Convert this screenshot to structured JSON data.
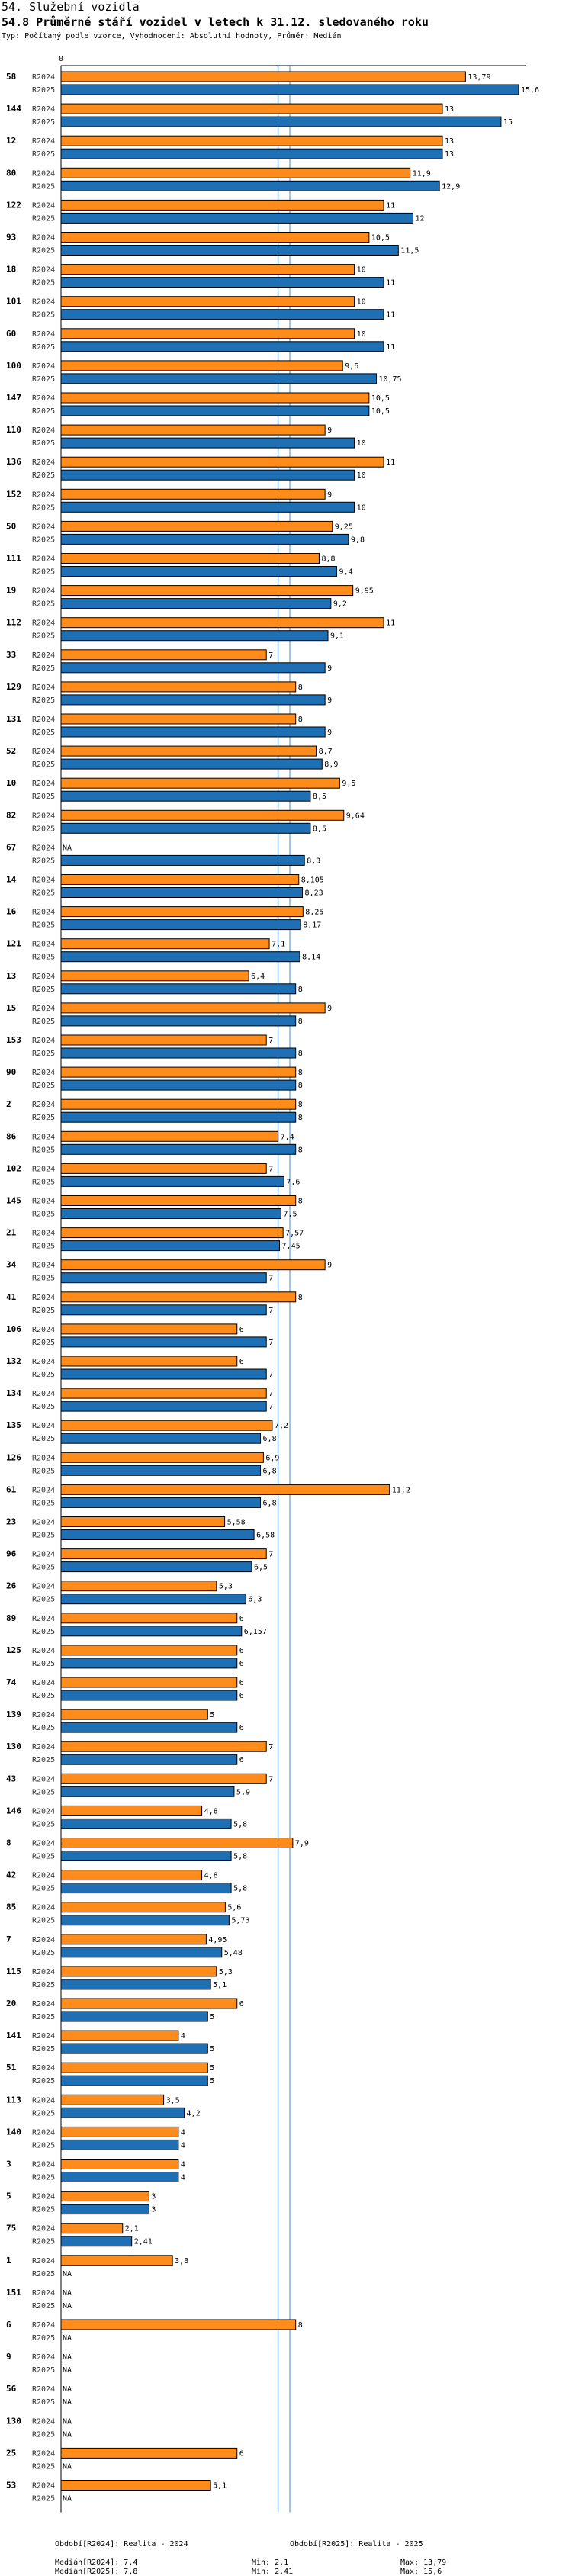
{
  "header": {
    "title": "54. Služební vozidla",
    "subtitle": "54.8 Průměrné stáří vozidel v letech k 31.12. sledovaného roku",
    "meta": "Typ: Počítaný podle vzorce, Vyhodnocení: Absolutní hodnoty, Průměr: Medián"
  },
  "chart_data": {
    "type": "bar",
    "orientation": "horizontal",
    "title": "54.8 Průměrné stáří vozidel v letech k 31.12. sledovaného roku",
    "x_tick_label": "0",
    "xlim": [
      0,
      15.6
    ],
    "na_label": "NA",
    "series_names": [
      "R2024",
      "R2025"
    ],
    "colors": {
      "R2024": "#ff8c1a",
      "R2025": "#1f6fb5",
      "median_line": "#7fb3e0"
    },
    "median": {
      "R2024": 7.4,
      "R2025": 7.8
    },
    "categories": [
      "58",
      "144",
      "12",
      "80",
      "122",
      "93",
      "18",
      "101",
      "60",
      "100",
      "147",
      "110",
      "136",
      "152",
      "50",
      "111",
      "19",
      "112",
      "33",
      "129",
      "131",
      "52",
      "10",
      "82",
      "67",
      "14",
      "16",
      "121",
      "13",
      "15",
      "153",
      "90",
      "2",
      "86",
      "102",
      "145",
      "21",
      "34",
      "41",
      "106",
      "132",
      "134",
      "135",
      "126",
      "61",
      "23",
      "96",
      "26",
      "89",
      "125",
      "74",
      "139",
      "130",
      "43",
      "146",
      "8",
      "42",
      "85",
      "7",
      "115",
      "20",
      "141",
      "51",
      "113",
      "140",
      "3",
      "5",
      "75",
      "1",
      "151",
      "6",
      "9",
      "56",
      "130",
      "25",
      "53"
    ],
    "series": [
      {
        "name": "R2024",
        "values": [
          13.79,
          13,
          13,
          11.9,
          11,
          10.5,
          10,
          10,
          10,
          9.6,
          10.5,
          9,
          11,
          9,
          9.25,
          8.8,
          9.95,
          11,
          7,
          8,
          8,
          8.7,
          9.5,
          9.64,
          null,
          8.105,
          8.25,
          7.1,
          6.4,
          9,
          7,
          8,
          8,
          7.4,
          7,
          8,
          7.57,
          9,
          8,
          6,
          6,
          7,
          7.2,
          6.9,
          11.2,
          5.58,
          7,
          5.3,
          6,
          6,
          6,
          5,
          7,
          7,
          4.8,
          7.9,
          4.8,
          5.6,
          4.95,
          5.3,
          6,
          4,
          5,
          3.5,
          4,
          4,
          3,
          2.1,
          3.8,
          null,
          8,
          null,
          null,
          null,
          6,
          5.1
        ],
        "labels": [
          "13,79",
          "13",
          "13",
          "11,9",
          "11",
          "10,5",
          "10",
          "10",
          "10",
          "9,6",
          "10,5",
          "9",
          "11",
          "9",
          "9,25",
          "8,8",
          "9,95",
          "11",
          "7",
          "8",
          "8",
          "8,7",
          "9,5",
          "9,64",
          "NA",
          "8,105",
          "8,25",
          "7,1",
          "6,4",
          "9",
          "7",
          "8",
          "8",
          "7,4",
          "7",
          "8",
          "7,57",
          "9",
          "8",
          "6",
          "6",
          "7",
          "7,2",
          "6,9",
          "11,2",
          "5,58",
          "7",
          "5,3",
          "6",
          "6",
          "6",
          "5",
          "7",
          "7",
          "4,8",
          "7,9",
          "4,8",
          "5,6",
          "4,95",
          "5,3",
          "6",
          "4",
          "5",
          "3,5",
          "4",
          "4",
          "3",
          "2,1",
          "3,8",
          "NA",
          "8",
          "NA",
          "NA",
          "NA",
          "6",
          "5,1"
        ]
      },
      {
        "name": "R2025",
        "values": [
          15.6,
          15,
          13,
          12.9,
          12,
          11.5,
          11,
          11,
          11,
          10.75,
          10.5,
          10,
          10,
          10,
          9.8,
          9.4,
          9.2,
          9.1,
          9,
          9,
          9,
          8.9,
          8.5,
          8.5,
          8.3,
          8.23,
          8.17,
          8.14,
          8,
          8,
          8,
          8,
          8,
          8,
          7.6,
          7.5,
          7.45,
          7,
          7,
          7,
          7,
          7,
          6.8,
          6.8,
          6.8,
          6.58,
          6.5,
          6.3,
          6.157,
          6,
          6,
          6,
          6,
          5.9,
          5.8,
          5.8,
          5.8,
          5.73,
          5.48,
          5.1,
          5,
          5,
          5,
          4.2,
          4,
          4,
          3,
          2.41,
          null,
          null,
          null,
          null,
          null,
          null,
          null,
          null
        ],
        "labels": [
          "15,6",
          "15",
          "13",
          "12,9",
          "12",
          "11,5",
          "11",
          "11",
          "11",
          "10,75",
          "10,5",
          "10",
          "10",
          "10",
          "9,8",
          "9,4",
          "9,2",
          "9,1",
          "9",
          "9",
          "9",
          "8,9",
          "8,5",
          "8,5",
          "8,3",
          "8,23",
          "8,17",
          "8,14",
          "8",
          "8",
          "8",
          "8",
          "8",
          "8",
          "7,6",
          "7,5",
          "7,45",
          "7",
          "7",
          "7",
          "7",
          "7",
          "6,8",
          "6,8",
          "6,8",
          "6,58",
          "6,5",
          "6,3",
          "6,157",
          "6",
          "6",
          "6",
          "6",
          "5,9",
          "5,8",
          "5,8",
          "5,8",
          "5,73",
          "5,48",
          "5,1",
          "5",
          "5",
          "5",
          "4,2",
          "4",
          "4",
          "3",
          "2,41",
          "NA",
          "NA",
          "NA",
          "NA",
          "NA",
          "NA",
          "NA",
          "NA"
        ]
      }
    ]
  },
  "footer": {
    "left": {
      "period": "Období[R2024]: Realita - 2024",
      "median": "Medián[R2024]: 7,4",
      "min": "Min: 2,1",
      "max": "Max: 13,79"
    },
    "right": {
      "period": "Období[R2025]: Realita - 2025",
      "median": "Medián[R2025]: 7,8",
      "min": "Min: 2,41",
      "max": "Max: 15,6"
    }
  }
}
